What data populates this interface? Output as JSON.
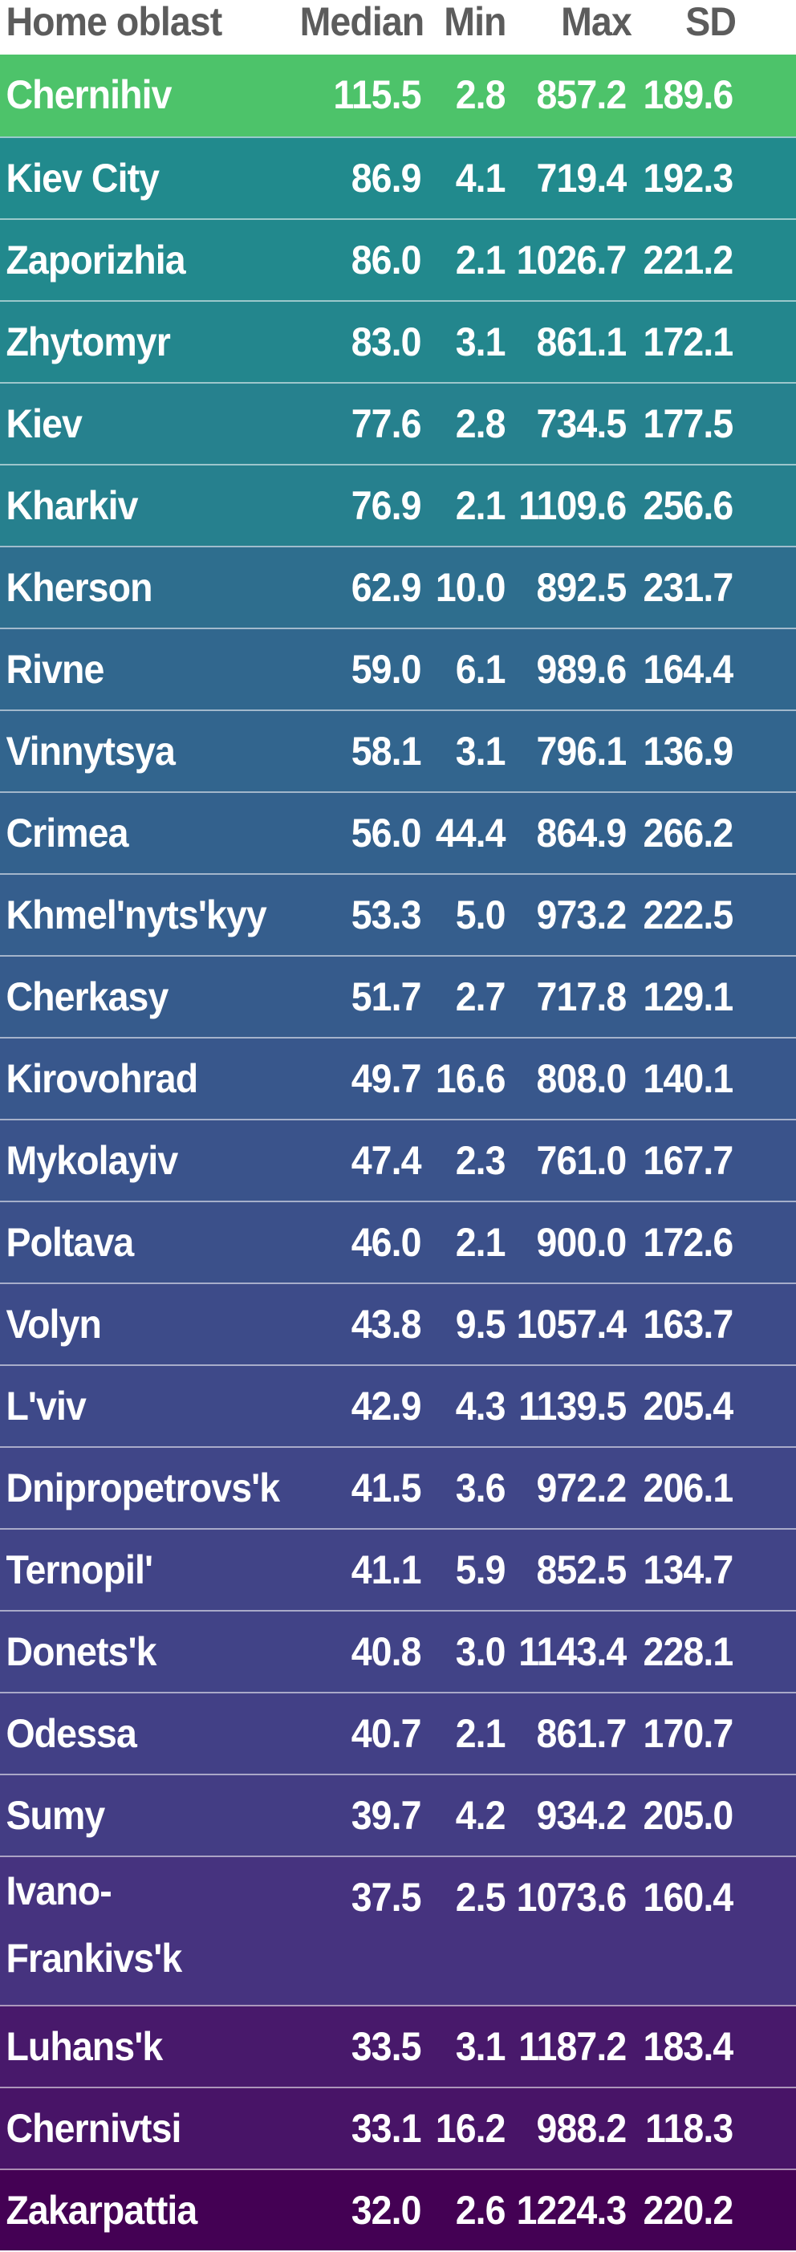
{
  "chart_data": {
    "type": "table",
    "columns": [
      "Home oblast",
      "Median",
      "Min",
      "Max",
      "SD"
    ],
    "rows": [
      {
        "name": "Chernihiv",
        "median": "115.5",
        "min": "2.8",
        "max": "857.2",
        "sd": "189.6",
        "color": "#4dc36a"
      },
      {
        "name": "Kiev City",
        "median": "86.9",
        "min": "4.1",
        "max": "719.4",
        "sd": "192.3",
        "color": "#218a8d"
      },
      {
        "name": "Zaporizhia",
        "median": "86.0",
        "min": "2.1",
        "max": "1026.7",
        "sd": "221.2",
        "color": "#22898d"
      },
      {
        "name": "Zhytomyr",
        "median": "83.0",
        "min": "3.1",
        "max": "861.1",
        "sd": "172.1",
        "color": "#23868d"
      },
      {
        "name": "Kiev",
        "median": "77.6",
        "min": "2.8",
        "max": "734.5",
        "sd": "177.5",
        "color": "#26818e"
      },
      {
        "name": "Kharkiv",
        "median": "76.9",
        "min": "2.1",
        "max": "1109.6",
        "sd": "256.6",
        "color": "#26808e"
      },
      {
        "name": "Kherson",
        "median": "62.9",
        "min": "10.0",
        "max": "892.5",
        "sd": "231.7",
        "color": "#2e6e8e"
      },
      {
        "name": "Rivne",
        "median": "59.0",
        "min": "6.1",
        "max": "989.6",
        "sd": "164.4",
        "color": "#31678e"
      },
      {
        "name": "Vinnytsya",
        "median": "58.1",
        "min": "3.1",
        "max": "796.1",
        "sd": "136.9",
        "color": "#32658e"
      },
      {
        "name": "Crimea",
        "median": "56.0",
        "min": "44.4",
        "max": "864.9",
        "sd": "266.2",
        "color": "#33618d"
      },
      {
        "name": "Khmel'nyts'kyy",
        "median": "53.3",
        "min": "5.0",
        "max": "973.2",
        "sd": "222.5",
        "color": "#355e8d"
      },
      {
        "name": "Cherkasy",
        "median": "51.7",
        "min": "2.7",
        "max": "717.8",
        "sd": "129.1",
        "color": "#365b8c"
      },
      {
        "name": "Kirovohrad",
        "median": "49.7",
        "min": "16.6",
        "max": "808.0",
        "sd": "140.1",
        "color": "#38578c"
      },
      {
        "name": "Mykolayiv",
        "median": "47.4",
        "min": "2.3",
        "max": "761.0",
        "sd": "167.7",
        "color": "#3a538b"
      },
      {
        "name": "Poltava",
        "median": "46.0",
        "min": "2.1",
        "max": "900.0",
        "sd": "172.6",
        "color": "#3b508a"
      },
      {
        "name": "Volyn",
        "median": "43.8",
        "min": "9.5",
        "max": "1057.4",
        "sd": "163.7",
        "color": "#3d4b89"
      },
      {
        "name": "L'viv",
        "median": "42.9",
        "min": "4.3",
        "max": "1139.5",
        "sd": "205.4",
        "color": "#3e4989"
      },
      {
        "name": "Dnipropetrovs'k",
        "median": "41.5",
        "min": "3.6",
        "max": "972.2",
        "sd": "206.1",
        "color": "#404688"
      },
      {
        "name": "Ternopil'",
        "median": "41.1",
        "min": "5.9",
        "max": "852.5",
        "sd": "134.7",
        "color": "#414487"
      },
      {
        "name": "Donets'k",
        "median": "40.8",
        "min": "3.0",
        "max": "1143.4",
        "sd": "228.1",
        "color": "#414387"
      },
      {
        "name": "Odessa",
        "median": "40.7",
        "min": "2.1",
        "max": "861.7",
        "sd": "170.7",
        "color": "#424086"
      },
      {
        "name": "Sumy",
        "median": "39.7",
        "min": "4.2",
        "max": "934.2",
        "sd": "205.0",
        "color": "#433d84"
      },
      {
        "name": "Ivano-Frankivs'k",
        "median": "37.5",
        "min": "2.5",
        "max": "1073.6",
        "sd": "160.4",
        "color": "#46337f"
      },
      {
        "name": "Luhans'k",
        "median": "33.5",
        "min": "3.1",
        "max": "1187.2",
        "sd": "183.4",
        "color": "#48196b"
      },
      {
        "name": "Chernivtsi",
        "median": "33.1",
        "min": "16.2",
        "max": "988.2",
        "sd": "118.3",
        "color": "#481467"
      },
      {
        "name": "Zakarpattia",
        "median": "32.0",
        "min": "2.6",
        "max": "1224.3",
        "sd": "220.2",
        "color": "#440154"
      }
    ]
  }
}
